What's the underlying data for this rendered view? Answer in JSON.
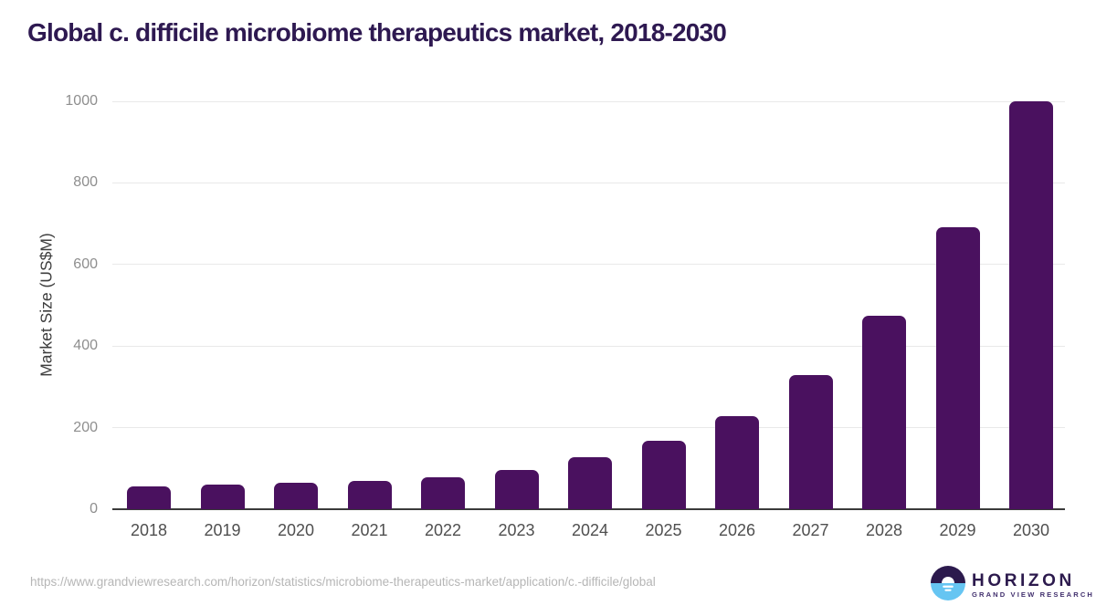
{
  "page": {
    "title": "Global c. difficile microbiome therapeutics market, 2018-2030"
  },
  "chart_data": {
    "type": "bar",
    "title": "Global c. difficile microbiome therapeutics market, 2018-2030",
    "categories": [
      "2018",
      "2019",
      "2020",
      "2021",
      "2022",
      "2023",
      "2024",
      "2025",
      "2026",
      "2027",
      "2028",
      "2029",
      "2030"
    ],
    "values": [
      55,
      61,
      64,
      70,
      79,
      96,
      127,
      167,
      228,
      330,
      475,
      692,
      1000
    ],
    "xlabel": "",
    "ylabel": "Market Size (US$M)",
    "ylim": [
      0,
      1000
    ],
    "yticks": [
      0,
      200,
      400,
      600,
      800,
      1000
    ],
    "grid": "horizontal",
    "legend": "none",
    "bar_color": "#4a115f"
  },
  "footer": {
    "source_url": "https://www.grandviewresearch.com/horizon/statistics/microbiome-therapeutics-market/application/c.-difficile/global",
    "logo": {
      "brand": "HORIZON",
      "subbrand": "GRAND VIEW RESEARCH"
    }
  },
  "colors": {
    "title_text": "#2e1951",
    "bar": "#4a115f",
    "gridline": "#e9e9e9",
    "axis_line": "#3a3a3a",
    "y_tick_text": "#8e8e8e",
    "x_tick_text": "#4f4f4f",
    "url_text": "#b6b6b6",
    "logo_purple": "#2c1a4d",
    "logo_blue": "#66c5f2"
  }
}
